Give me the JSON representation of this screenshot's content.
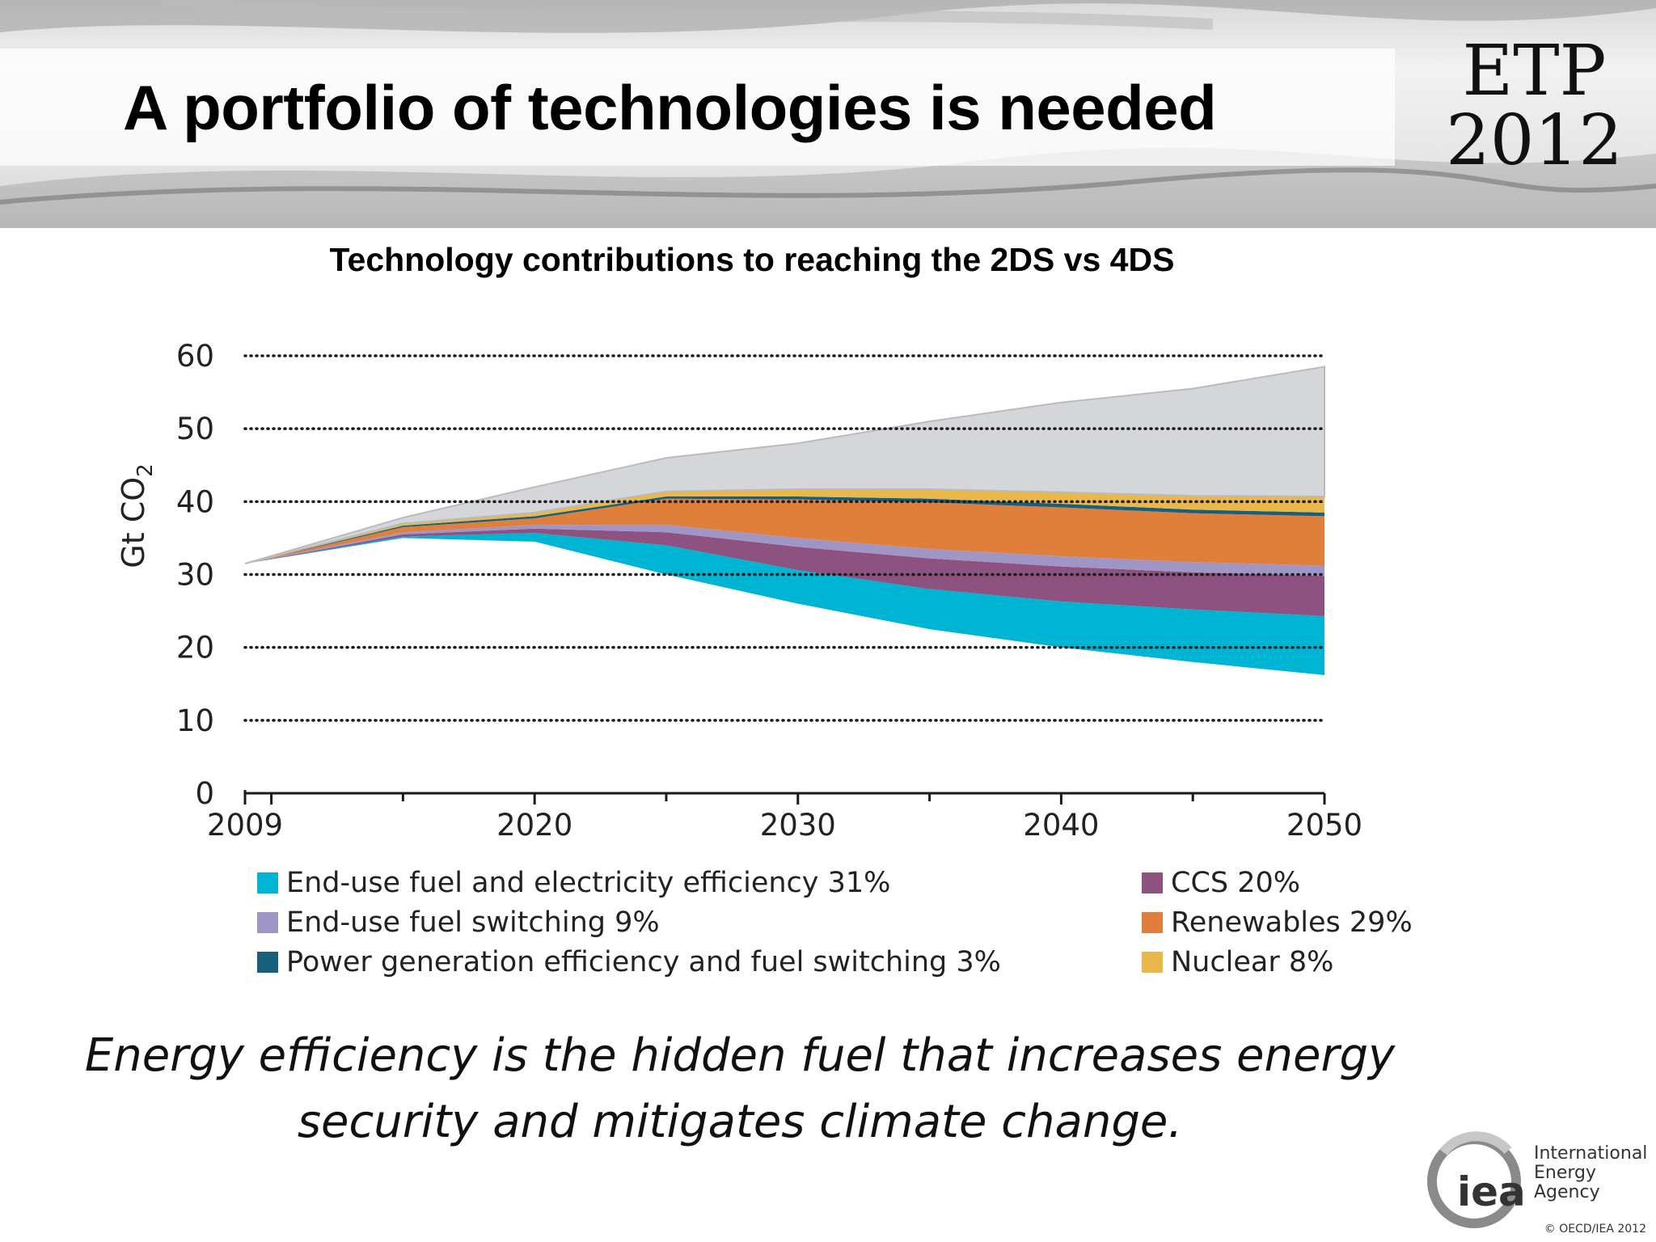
{
  "slide": {
    "title": "A portfolio of technologies is needed",
    "badge_line1": "ETP",
    "badge_line2": "2012",
    "caption_line1": "Energy efficiency is the hidden fuel that increases energy",
    "caption_line2": "security and mitigates climate change.",
    "org_name_line1": "International",
    "org_name_line2": "Energy Agency",
    "org_mark": "iea",
    "copyright": "© OECD/IEA 2012"
  },
  "chart_data": {
    "type": "area",
    "title": "Technology contributions to reaching the 2DS vs 4DS",
    "ylabel": "Gt CO",
    "ylabel_subscript": "2",
    "xlabel": "",
    "x": [
      2009,
      2015,
      2020,
      2025,
      2030,
      2035,
      2040,
      2045,
      2050
    ],
    "x_ticks": [
      2009,
      2020,
      2030,
      2040,
      2050
    ],
    "y_ticks": [
      0,
      10,
      20,
      30,
      40,
      50,
      60
    ],
    "xlim": [
      2009,
      2050
    ],
    "ylim": [
      0,
      60
    ],
    "grid": "horizontal-dotted",
    "legend_position": "bottom",
    "baseline_4DS": [
      31.5,
      37.5,
      40.5,
      43,
      45.5,
      49,
      52,
      55,
      58
    ],
    "result_2DS": [
      31.5,
      35,
      34.5,
      30,
      26,
      22.5,
      20,
      18,
      16.2
    ],
    "series": [
      {
        "name": "End-use fuel and electricity efficiency 31%",
        "color": "#00b5d4",
        "values": [
          0,
          0.2,
          1.2,
          4,
          4.6,
          5.5,
          6.3,
          7.2,
          8.1
        ]
      },
      {
        "name": "CCS 20%",
        "color": "#8e5281",
        "values": [
          0,
          0.3,
          0.6,
          1.8,
          3.2,
          4.2,
          4.8,
          5.1,
          5.5
        ]
      },
      {
        "name": "End-use fuel switching 9%",
        "color": "#9f96c5",
        "values": [
          0,
          0.3,
          0.5,
          1,
          1.2,
          1.3,
          1.4,
          1.4,
          1.4
        ]
      },
      {
        "name": "Renewables 29%",
        "color": "#e07e3c",
        "values": [
          0,
          0.7,
          0.9,
          3.6,
          5.3,
          6.4,
          6.7,
          6.7,
          6.8
        ]
      },
      {
        "name": "Power generation efficiency and fuel switching 3%",
        "color": "#17607d",
        "values": [
          0,
          0.2,
          0.3,
          0.3,
          0.4,
          0.5,
          0.5,
          0.5,
          0.5
        ]
      },
      {
        "name": "Nuclear 8%",
        "color": "#e9b74a",
        "values": [
          0,
          0.3,
          0.5,
          0.7,
          1,
          1.3,
          1.6,
          1.9,
          2.2
        ]
      },
      {
        "name": "",
        "color": "#d4d6d9",
        "values": [
          0,
          0.8,
          3.5,
          4.6,
          6.3,
          9.3,
          12.3,
          14.7,
          17.8
        ]
      }
    ],
    "legend_order": [
      0,
      2,
      4,
      1,
      3,
      5
    ]
  }
}
